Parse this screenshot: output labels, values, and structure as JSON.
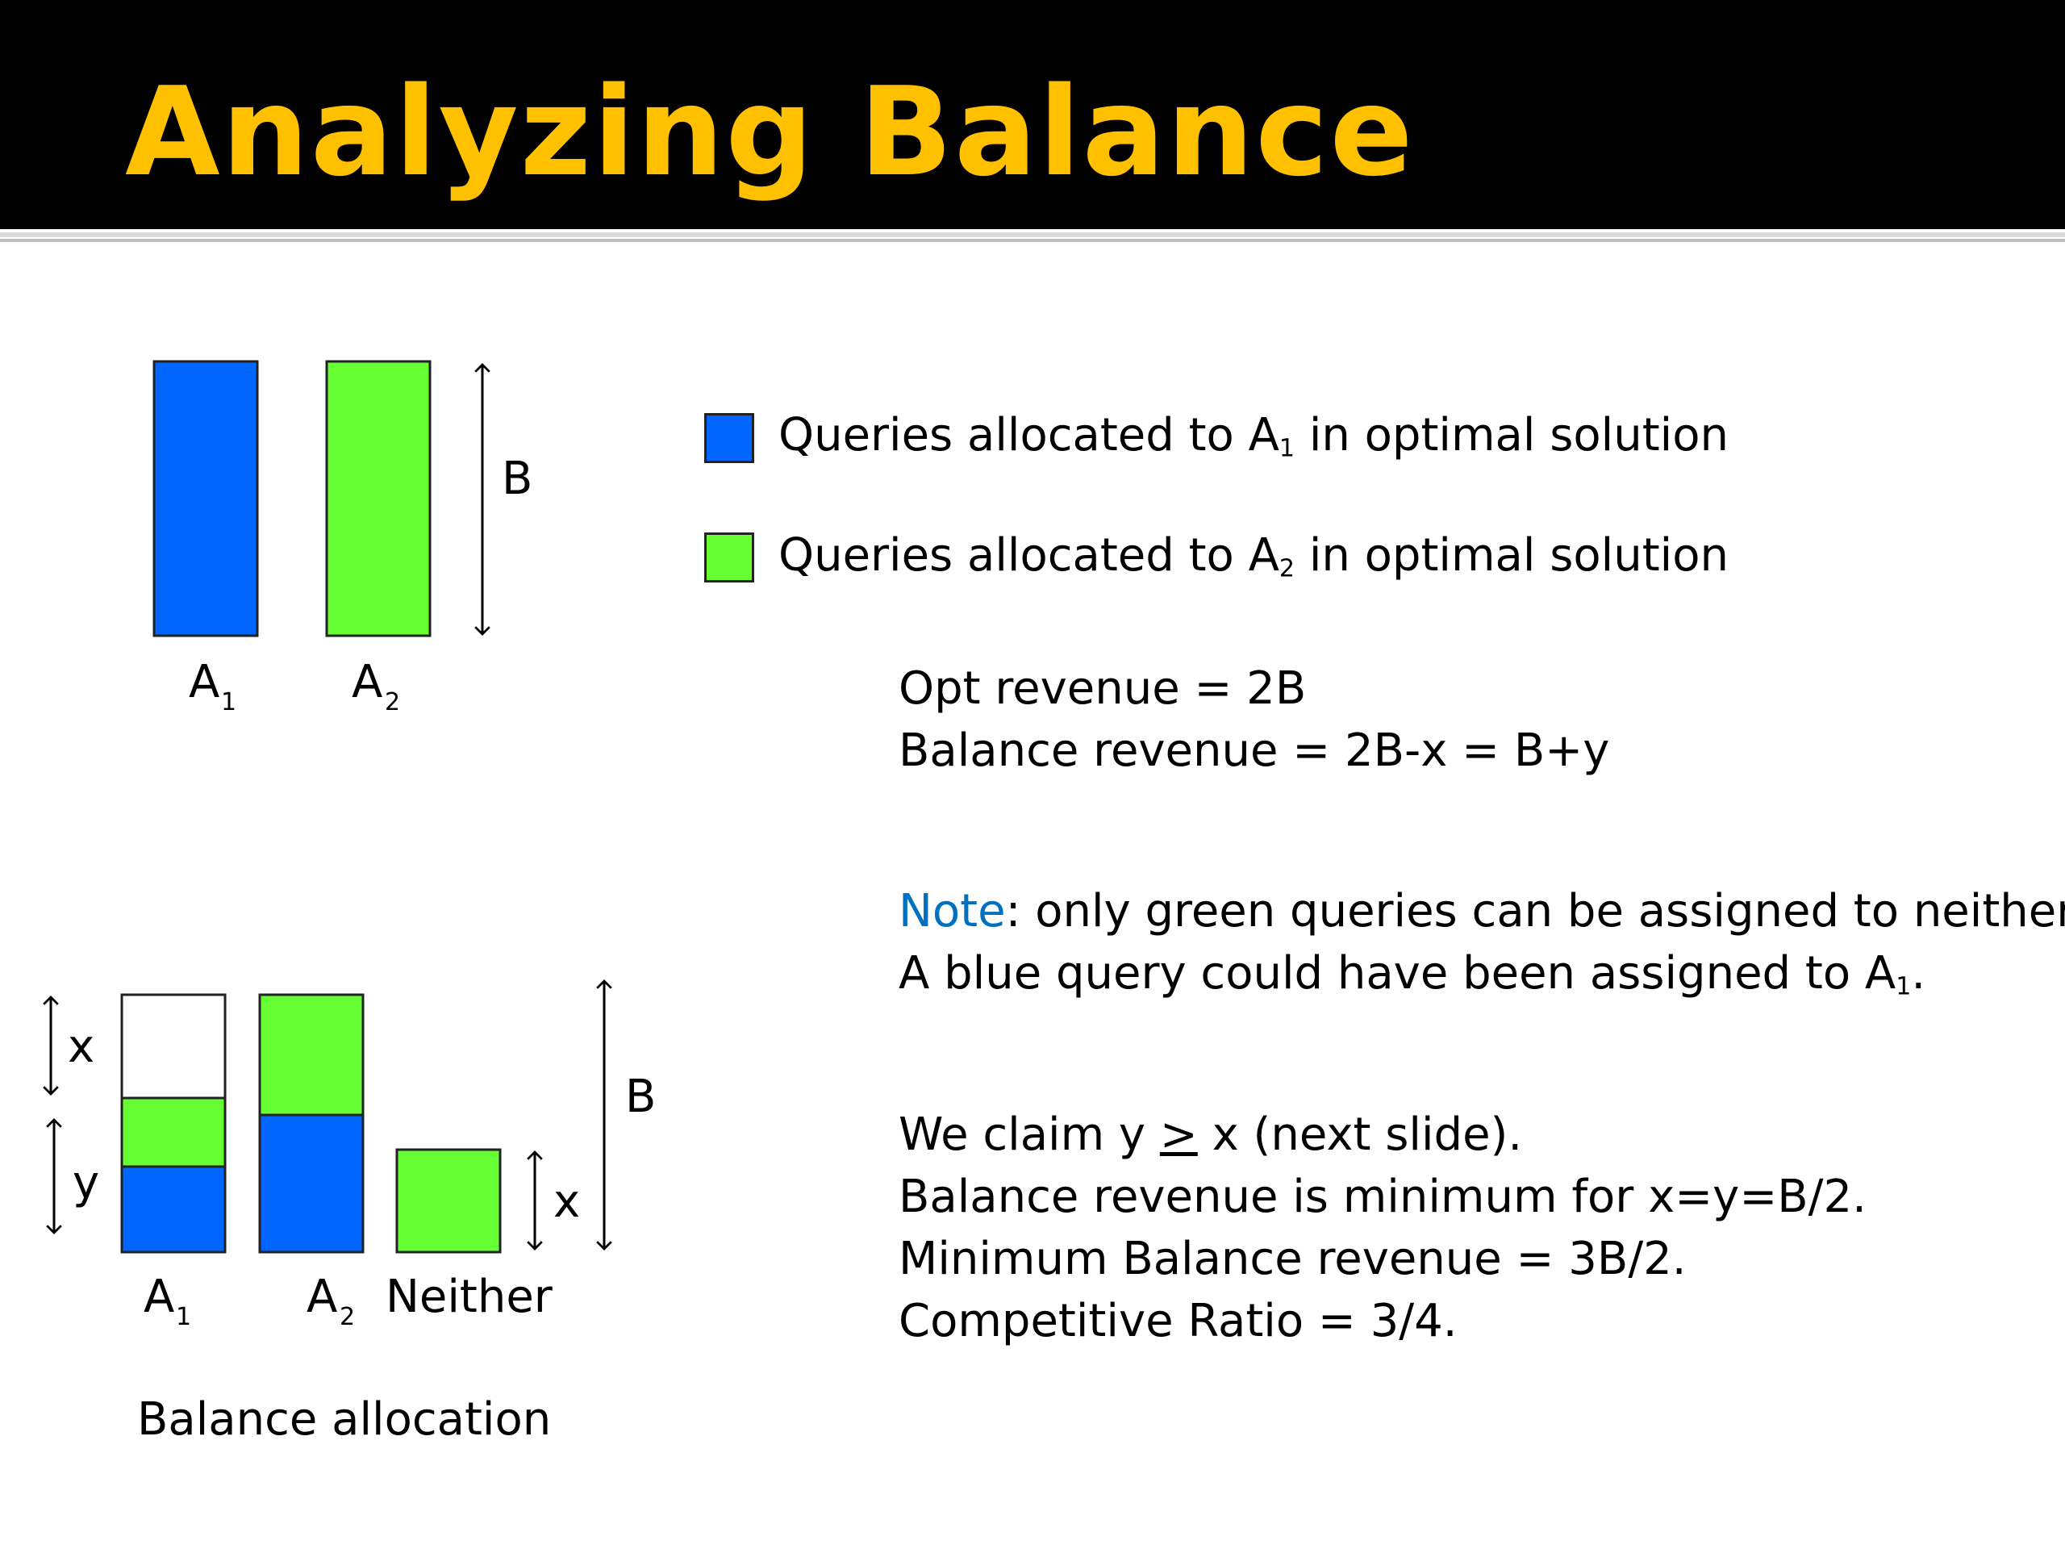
{
  "slide": {
    "title": "Analyzing Balance",
    "title_color": "#FFC000"
  },
  "colors": {
    "blue": "#0066FF",
    "green": "#66FF33",
    "note": "#0070C0"
  },
  "top_diagram": {
    "bars": [
      {
        "label": "A",
        "sub": "1",
        "color": "#0066FF"
      },
      {
        "label": "A",
        "sub": "2",
        "color": "#66FF33"
      }
    ],
    "height_label": "B"
  },
  "legend": {
    "items": [
      {
        "color": "#0066FF",
        "prefix": "Queries allocated to A",
        "sub": "1",
        "suffix": " in optimal solution"
      },
      {
        "color": "#66FF33",
        "prefix": "Queries allocated to A",
        "sub": "2",
        "suffix": " in optimal solution"
      }
    ]
  },
  "revenue": {
    "opt": "Opt revenue = 2B",
    "balance": "Balance revenue = 2B-x = B+y"
  },
  "note": {
    "label": "Note",
    "line1_rest": ": only green queries can be assigned to neither.",
    "line2_prefix": "A blue query could have been assigned to A",
    "line2_sub": "1",
    "line2_suffix": "."
  },
  "claims": {
    "line1_prefix": "We claim y ",
    "line1_op": ">",
    "line1_suffix": " x (next slide).",
    "line2": "Balance revenue is minimum for x=y=B/2.",
    "line3": "Minimum Balance revenue = 3B/2.",
    "line4": "Competitive Ratio = 3/4."
  },
  "bottom_diagram": {
    "bars": [
      {
        "label": "A",
        "sub": "1"
      },
      {
        "label": "A",
        "sub": "2"
      },
      {
        "label": "Neither",
        "sub": ""
      }
    ],
    "x_label": "x",
    "y_label": "y",
    "b_label": "B",
    "neither_x_label": "x",
    "caption": "Balance allocation"
  }
}
